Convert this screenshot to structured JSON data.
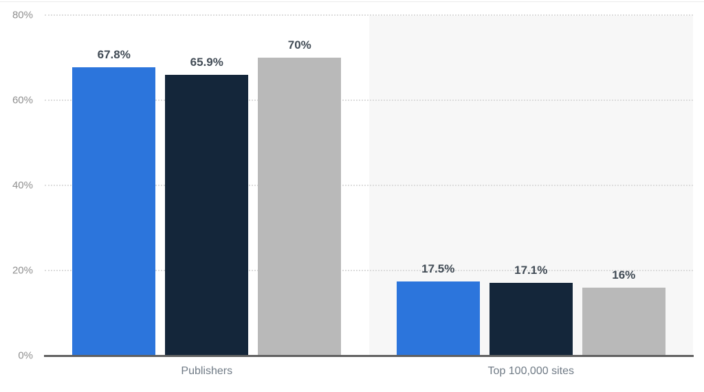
{
  "chart_data": {
    "type": "bar",
    "title": "",
    "xlabel": "",
    "ylabel": "",
    "categories": [
      "Publishers",
      "Top 100,000 sites"
    ],
    "series": [
      {
        "name": "blue-series",
        "color": "#2c75dc",
        "values": [
          67.8,
          17.5
        ],
        "value_labels": [
          "67.8%",
          "17.5%"
        ]
      },
      {
        "name": "navy-series",
        "color": "#14263a",
        "values": [
          65.9,
          17.1
        ],
        "value_labels": [
          "65.9%",
          "17.1%"
        ]
      },
      {
        "name": "gray-series",
        "color": "#b9b9b9",
        "values": [
          70,
          16
        ],
        "value_labels": [
          "70%",
          "16%"
        ]
      }
    ],
    "ylim": [
      0,
      80
    ],
    "yticks": [
      {
        "value": 0,
        "label": "0%"
      },
      {
        "value": 20,
        "label": "20%"
      },
      {
        "value": 40,
        "label": "40%"
      },
      {
        "value": 60,
        "label": "60%"
      },
      {
        "value": 80,
        "label": "80%"
      }
    ],
    "grid": "horizontal-dotted",
    "legend_position": "none",
    "highlighted_category_index": 1
  },
  "style": {
    "background_color": "#ffffff",
    "highlight_band_color": "#f7f7f7",
    "gridline_color": "#dcdcdc",
    "axis_line_color": "#5f5f5f",
    "tick_label_color": "#8f8f8f",
    "value_label_color": "#414b55",
    "category_label_color": "#6f7a85"
  }
}
